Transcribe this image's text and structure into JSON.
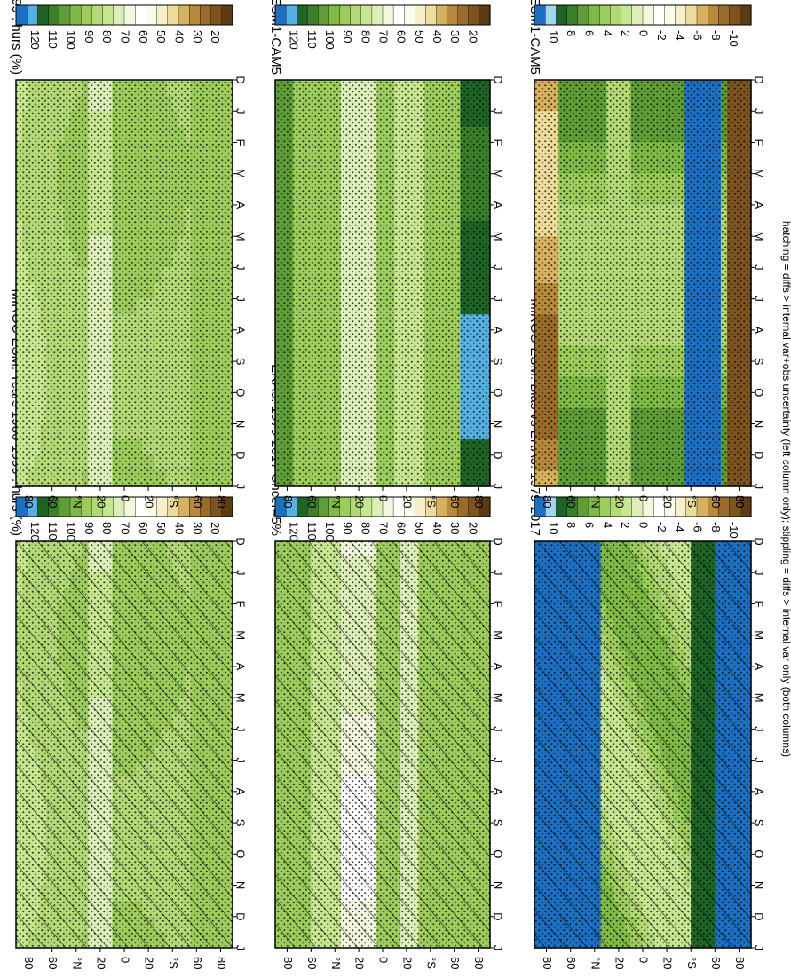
{
  "footer": "hatching = diffs > internal var+obs uncertainty (left column only); stippling = diffs > internal var only (both columns)",
  "palettes": {
    "abs": [
      "#5e3c12",
      "#7d5420",
      "#9a6b2b",
      "#b8893a",
      "#d6b15e",
      "#eedc9a",
      "#f6efc9",
      "#fcfaea",
      "#ffffff",
      "#f2f8dd",
      "#dcefb8",
      "#c7e690",
      "#b2d975",
      "#9ccd5c",
      "#80ba46",
      "#5f9e37",
      "#3b7f2a",
      "#1f6427",
      "#56b1e2",
      "#1c6fc1"
    ],
    "diff": [
      "#5e3c12",
      "#7d5420",
      "#9a6b2b",
      "#b8893a",
      "#d6b15e",
      "#eedc9a",
      "#f6efc9",
      "#fcfaea",
      "#ffffff",
      "#f2f8dd",
      "#dcefb8",
      "#c7e690",
      "#b2d975",
      "#9ccd5c",
      "#80ba46",
      "#5f9e37",
      "#3b7f2a",
      "#1f6427",
      "#9ed6f2",
      "#1c6fc1"
    ]
  },
  "chart_data": [
    {
      "id": "p1",
      "type": "heatmap",
      "title": "MIROC-ESM: Years 1980-1999 : hurs (%)",
      "x_ticks": [
        "D",
        "J",
        "F",
        "M",
        "A",
        "M",
        "J",
        "J",
        "A",
        "S",
        "O",
        "N",
        "D",
        "J"
      ],
      "y_ticks": [
        "80",
        "60",
        "°N",
        "20",
        "0",
        "20",
        "°S",
        "60",
        "80"
      ],
      "y_range": [
        -90,
        90
      ],
      "colorbar": {
        "labels": [
          "120",
          "110",
          "100",
          "90",
          "80",
          "70",
          "60",
          "50",
          "40",
          "30",
          "20"
        ],
        "range": [
          20,
          120
        ],
        "palette": "abs"
      },
      "field": "abs_miroc",
      "hatching": "lat<20 || lat>-20",
      "stippling": "all"
    },
    {
      "id": "p2",
      "type": "heatmap",
      "title": "MIROC-ESM: Years 1980-1999 : hurs (%)",
      "x_ticks": [
        "D",
        "J",
        "F",
        "M",
        "A",
        "M",
        "J",
        "J",
        "A",
        "S",
        "O",
        "N",
        "D",
        "J"
      ],
      "y_ticks": [
        "80",
        "60",
        "°N",
        "20",
        "0",
        "20",
        "°S",
        "60",
        "80"
      ],
      "y_range": [
        -90,
        90
      ],
      "colorbar": {
        "labels": [
          "120",
          "110",
          "100",
          "90",
          "80",
          "70",
          "60",
          "50",
          "40",
          "30",
          "20"
        ],
        "range": [
          20,
          120
        ],
        "palette": "abs"
      },
      "field": "abs_miroc",
      "stippling": "all"
    },
    {
      "id": "p3",
      "type": "heatmap",
      "title": "ERA5: 1979-2017 Uncer=5%",
      "x_ticks": [
        "D",
        "J",
        "F",
        "M",
        "A",
        "M",
        "J",
        "J",
        "A",
        "S",
        "O",
        "N",
        "D",
        "J"
      ],
      "y_ticks": [
        "80",
        "60",
        "°N",
        "20",
        "0",
        "20",
        "°S",
        "60",
        "80"
      ],
      "y_range": [
        -90,
        90
      ],
      "colorbar": {
        "labels": [
          "120",
          "110",
          "100",
          "90",
          "80",
          "70",
          "60",
          "50",
          "40",
          "30",
          "20"
        ],
        "range": [
          20,
          120
        ],
        "palette": "abs"
      },
      "field": "abs_era5",
      "hatching": "lat>25 || lat<-20",
      "stippling": "lat<25 && lat>-20"
    },
    {
      "id": "p4",
      "type": "heatmap",
      "title": "CESM1-CAM5",
      "x_ticks": [
        "D",
        "J",
        "F",
        "M",
        "A",
        "M",
        "J",
        "J",
        "A",
        "S",
        "O",
        "N",
        "D",
        "J"
      ],
      "y_ticks": [
        "80",
        "60",
        "°N",
        "20",
        "0",
        "20",
        "°S",
        "60",
        "80"
      ],
      "y_range": [
        -90,
        90
      ],
      "colorbar": {
        "labels": [
          "120",
          "110",
          "100",
          "90",
          "80",
          "70",
          "60",
          "50",
          "40",
          "30",
          "20"
        ],
        "range": [
          20,
          120
        ],
        "palette": "abs"
      },
      "field": "abs_cesm",
      "stippling": "all"
    },
    {
      "id": "p5",
      "type": "heatmap",
      "title": "MIROC-ESM: Bias vs ERA5: 1979-2017",
      "x_ticks": [
        "D",
        "J",
        "F",
        "M",
        "A",
        "M",
        "J",
        "J",
        "A",
        "S",
        "O",
        "N",
        "D",
        "J"
      ],
      "y_ticks": [
        "80",
        "60",
        "°N",
        "20",
        "0",
        "20",
        "°S",
        "60",
        "80"
      ],
      "y_range": [
        -90,
        90
      ],
      "colorbar": {
        "labels": [
          "10",
          "8",
          "6",
          "4",
          "2",
          "0",
          "-2",
          "-4",
          "-6",
          "-8",
          "-10"
        ],
        "range": [
          -10,
          10
        ],
        "palette": "diff"
      },
      "field": "bias",
      "hatching": "all",
      "stippling": "lat<30 && lat>-45"
    },
    {
      "id": "p6",
      "type": "heatmap",
      "title": "MIROC-ESM: Change vs CESM1-CAM5",
      "x_ticks": [
        "D",
        "J",
        "F",
        "M",
        "A",
        "M",
        "J",
        "J",
        "A",
        "S",
        "O",
        "N",
        "D",
        "J"
      ],
      "y_ticks": [
        "80",
        "60",
        "°N",
        "20",
        "0",
        "20",
        "°S",
        "60",
        "80"
      ],
      "y_range": [
        -90,
        90
      ],
      "colorbar": {
        "labels": [
          "10",
          "8",
          "6",
          "4",
          "2",
          "0",
          "-2",
          "-4",
          "-6",
          "-8",
          "-10"
        ],
        "range": [
          -10,
          10
        ],
        "palette": "diff"
      },
      "field": "change",
      "stippling": "all"
    }
  ]
}
